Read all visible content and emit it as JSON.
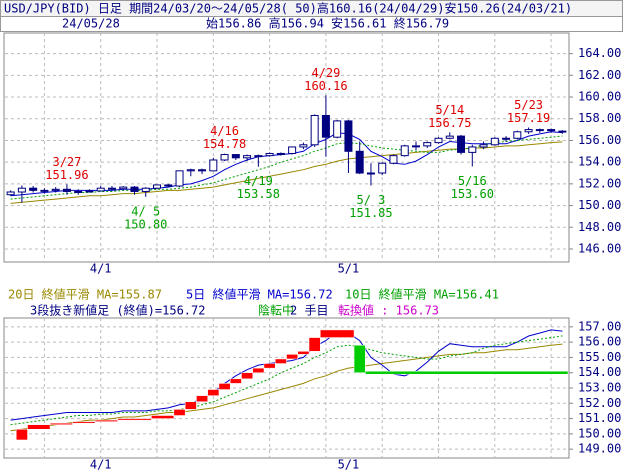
{
  "chart_data": [
    {
      "type": "candlestick",
      "title": "USD/JPY(BID) 日足 期間24/03/20～24/05/28( 50)高160.16(24/04/29)安150.26(24/03/21)",
      "subtitle": "24/05/28",
      "ohlc_text": "始156.86 高156.94 安156.61 終156.79",
      "categories": [
        null,
        null,
        null,
        null,
        null,
        null,
        null,
        null,
        "4/1",
        null,
        null,
        null,
        null,
        null,
        null,
        null,
        null,
        null,
        null,
        null,
        null,
        null,
        null,
        null,
        null,
        null,
        null,
        null,
        null,
        null,
        "5/1",
        null,
        null,
        null,
        null,
        null,
        null,
        null,
        null,
        null,
        null,
        null,
        null,
        null,
        null,
        null,
        null,
        null,
        null,
        null
      ],
      "open": [
        151.0,
        151.25,
        151.6,
        151.4,
        151.4,
        151.5,
        151.3,
        151.3,
        151.35,
        151.6,
        151.55,
        151.7,
        151.3,
        151.6,
        151.9,
        151.8,
        153.2,
        153.3,
        153.2,
        154.2,
        154.7,
        154.4,
        154.6,
        154.6,
        154.8,
        154.8,
        155.4,
        155.6,
        158.3,
        156.3,
        157.8,
        155.0,
        153.0,
        153.0,
        153.9,
        154.6,
        155.5,
        155.5,
        155.8,
        156.2,
        156.4,
        154.9,
        155.4,
        155.6,
        156.2,
        156.2,
        156.8,
        157.0,
        157.0,
        156.86
      ],
      "high": [
        151.4,
        151.85,
        151.8,
        151.6,
        151.7,
        151.96,
        151.5,
        151.5,
        151.8,
        151.8,
        151.8,
        151.8,
        151.7,
        151.95,
        152.0,
        153.2,
        153.4,
        153.4,
        154.4,
        154.78,
        154.7,
        154.7,
        154.7,
        154.9,
        154.9,
        155.4,
        155.8,
        158.4,
        160.16,
        157.9,
        157.9,
        155.9,
        153.9,
        154.0,
        154.7,
        155.6,
        155.9,
        155.9,
        156.3,
        156.75,
        156.5,
        155.6,
        155.9,
        156.3,
        156.4,
        156.9,
        157.19,
        157.1,
        157.1,
        156.94
      ],
      "low": [
        150.9,
        150.26,
        151.2,
        151.1,
        151.2,
        151.0,
        151.0,
        151.2,
        151.3,
        151.4,
        151.4,
        151.0,
        150.8,
        151.6,
        151.7,
        151.7,
        152.7,
        152.9,
        153.2,
        154.1,
        154.2,
        154.1,
        153.58,
        154.5,
        154.6,
        154.7,
        155.2,
        155.4,
        154.5,
        156.2,
        153.0,
        152.9,
        151.85,
        152.8,
        153.8,
        154.5,
        155.1,
        155.3,
        155.7,
        156.1,
        154.7,
        153.6,
        155.2,
        155.5,
        155.9,
        156.1,
        156.6,
        156.7,
        156.7,
        156.61
      ],
      "close": [
        151.25,
        151.6,
        151.4,
        151.4,
        151.5,
        151.3,
        151.3,
        151.35,
        151.6,
        151.55,
        151.7,
        151.3,
        151.6,
        151.9,
        151.8,
        153.2,
        153.3,
        153.2,
        154.2,
        154.7,
        154.4,
        154.6,
        154.6,
        154.8,
        154.8,
        155.4,
        155.6,
        158.3,
        156.3,
        157.8,
        155.0,
        153.0,
        153.0,
        153.9,
        154.6,
        155.5,
        155.5,
        155.8,
        156.2,
        156.4,
        154.9,
        155.4,
        155.6,
        156.2,
        156.2,
        156.8,
        157.0,
        157.0,
        156.9,
        156.79
      ],
      "up_color": "#ffffff",
      "down_color": "#000080",
      "candle_stroke": "#000080",
      "series": [
        {
          "name": "20日 終値平滑 MA=155.87",
          "color": "#998800",
          "values": [
            150.2,
            150.3,
            150.4,
            150.5,
            150.6,
            150.7,
            150.8,
            150.9,
            150.9,
            151.0,
            151.1,
            151.1,
            151.2,
            151.3,
            151.4,
            151.4,
            151.5,
            151.6,
            151.7,
            151.9,
            152.1,
            152.3,
            152.5,
            152.7,
            152.9,
            153.1,
            153.3,
            153.6,
            153.8,
            154.1,
            154.3,
            154.4,
            154.5,
            154.6,
            154.7,
            154.8,
            154.9,
            155.0,
            155.1,
            155.2,
            155.2,
            155.3,
            155.3,
            155.4,
            155.5,
            155.5,
            155.6,
            155.7,
            155.8,
            155.87
          ]
        },
        {
          "name": "5日 終値平滑 MA=156.72",
          "color": "#0000cc",
          "values": [
            150.9,
            151.0,
            151.1,
            151.2,
            151.3,
            151.4,
            151.4,
            151.4,
            151.4,
            151.4,
            151.5,
            151.5,
            151.5,
            151.6,
            151.7,
            151.9,
            152.0,
            152.3,
            152.7,
            153.3,
            153.8,
            154.2,
            154.5,
            154.6,
            154.7,
            154.8,
            155.0,
            155.7,
            156.1,
            156.7,
            156.6,
            156.1,
            155.0,
            154.5,
            153.9,
            153.8,
            154.1,
            154.7,
            155.4,
            155.9,
            155.8,
            155.7,
            155.7,
            155.7,
            155.7,
            156.0,
            156.4,
            156.6,
            156.8,
            156.72
          ]
        },
        {
          "name": "10日 終値平滑 MA=156.41",
          "color": "#00a000",
          "dash": true,
          "values": [
            150.6,
            150.7,
            150.8,
            150.9,
            151.0,
            151.1,
            151.2,
            151.2,
            151.3,
            151.3,
            151.4,
            151.4,
            151.4,
            151.5,
            151.5,
            151.6,
            151.7,
            151.9,
            152.1,
            152.4,
            152.7,
            153.0,
            153.3,
            153.6,
            154.0,
            154.3,
            154.6,
            155.0,
            155.3,
            155.7,
            155.8,
            155.7,
            155.5,
            155.3,
            155.2,
            155.1,
            155.0,
            154.9,
            154.9,
            155.1,
            155.2,
            155.3,
            155.6,
            155.8,
            155.9,
            156.0,
            156.1,
            156.2,
            156.3,
            156.41
          ]
        }
      ],
      "high_labels": [
        {
          "date": "3/27",
          "value": 151.96
        },
        {
          "date": "4/16",
          "value": 154.78
        },
        {
          "date": "4/29",
          "value": 160.16
        },
        {
          "date": "5/14",
          "value": 156.75
        },
        {
          "date": "5/23",
          "value": 157.19
        }
      ],
      "low_labels": [
        {
          "date": "4/ 5",
          "value": 150.8,
          "label": "150.80"
        },
        {
          "date": "4/19",
          "value": 153.58
        },
        {
          "date": "5/ 3",
          "value": 151.85
        },
        {
          "date": "5/16",
          "value": 153.6,
          "label": "153.60"
        }
      ],
      "high_label_color": "#dd0000",
      "low_label_color": "#00a000",
      "ylim": [
        144.8,
        165.9
      ],
      "yticks": [
        {
          "value": 146,
          "label": "146.00"
        },
        {
          "value": 148,
          "label": "148.00"
        },
        {
          "value": 150,
          "label": "150.00"
        },
        {
          "value": 152,
          "label": "152.00"
        },
        {
          "value": 154,
          "label": "154.00"
        },
        {
          "value": 156,
          "label": "156.00"
        },
        {
          "value": 158,
          "label": "158.00"
        },
        {
          "value": 160,
          "label": "160.00"
        },
        {
          "value": 162,
          "label": "162.00"
        },
        {
          "value": 164,
          "label": "164.00"
        }
      ],
      "grid": true
    },
    {
      "type": "line_break",
      "texts": [
        {
          "text": "3段抜き新値足 (終値)=156.72",
          "color": "#000080"
        },
        {
          "text": "陰転中",
          "color": "#00a000"
        },
        {
          "text": "2 手目",
          "color": "#000080"
        },
        {
          "text": "転換値 : 156.73",
          "color": "#cc00cc"
        }
      ],
      "up_color": "#ff0000",
      "down_color": "#00cc00",
      "bricks": [
        {
          "x0": 1,
          "x1": 2,
          "from": 149.6,
          "to": 150.3
        },
        {
          "x0": 2,
          "x1": 4,
          "from": 150.3,
          "to": 150.6
        },
        {
          "x0": 4,
          "x1": 6,
          "from": 150.6,
          "to": 150.7
        },
        {
          "x0": 6,
          "x1": 8,
          "from": 150.7,
          "to": 150.8
        },
        {
          "x0": 8,
          "x1": 10,
          "from": 150.8,
          "to": 150.9
        },
        {
          "x0": 10,
          "x1": 13,
          "from": 150.9,
          "to": 151.0
        },
        {
          "x0": 13,
          "x1": 15,
          "from": 151.0,
          "to": 151.2
        },
        {
          "x0": 15,
          "x1": 16,
          "from": 151.2,
          "to": 151.6
        },
        {
          "x0": 16,
          "x1": 17,
          "from": 151.6,
          "to": 152.1
        },
        {
          "x0": 17,
          "x1": 18,
          "from": 152.1,
          "to": 152.5
        },
        {
          "x0": 18,
          "x1": 19,
          "from": 152.5,
          "to": 152.9
        },
        {
          "x0": 19,
          "x1": 20,
          "from": 152.9,
          "to": 153.3
        },
        {
          "x0": 20,
          "x1": 21,
          "from": 153.3,
          "to": 153.6
        },
        {
          "x0": 21,
          "x1": 22,
          "from": 153.6,
          "to": 154.0
        },
        {
          "x0": 22,
          "x1": 23,
          "from": 154.0,
          "to": 154.3
        },
        {
          "x0": 23,
          "x1": 24,
          "from": 154.3,
          "to": 154.6
        },
        {
          "x0": 24,
          "x1": 25,
          "from": 154.6,
          "to": 154.9
        },
        {
          "x0": 25,
          "x1": 26,
          "from": 154.9,
          "to": 155.2
        },
        {
          "x0": 26,
          "x1": 27,
          "from": 155.2,
          "to": 155.4
        },
        {
          "x0": 27,
          "x1": 28,
          "from": 155.4,
          "to": 156.3
        },
        {
          "x0": 28,
          "x1": 31,
          "from": 156.3,
          "to": 156.8
        },
        {
          "x0": 31,
          "x1": 32,
          "from": 155.8,
          "to": 154.0
        },
        {
          "x0": 32,
          "x1": 50,
          "from": 154.1,
          "to": 153.9
        }
      ],
      "ylim": [
        148.42,
        157.58
      ],
      "yticks": [
        {
          "value": 149,
          "label": "149.00"
        },
        {
          "value": 150,
          "label": "150.00"
        },
        {
          "value": 151,
          "label": "151.00"
        },
        {
          "value": 152,
          "label": "152.00"
        },
        {
          "value": 153,
          "label": "153.00"
        },
        {
          "value": 154,
          "label": "154.00"
        },
        {
          "value": 155,
          "label": "155.00"
        },
        {
          "value": 156,
          "label": "156.00"
        },
        {
          "value": 157,
          "label": "157.00"
        }
      ],
      "grid": true
    }
  ]
}
